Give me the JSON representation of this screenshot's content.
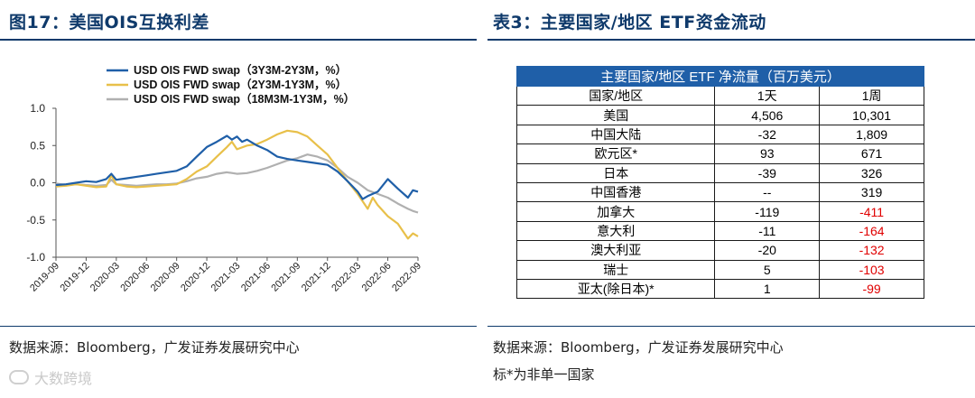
{
  "left_panel": {
    "title": "图17：美国OIS互换利差",
    "source": "数据来源：Bloomberg，广发证券发展研究中心"
  },
  "right_panel": {
    "title": "表3：主要国家/地区 ETF资金流动",
    "source": "数据来源：Bloomberg，广发证券发展研究中心",
    "note": "标*为非单一国家",
    "table": {
      "header": "主要国家/地区 ETF 净流量（百万美元）",
      "columns": [
        "国家/地区",
        "1天",
        "1周"
      ],
      "rows": [
        {
          "region": "美国",
          "d1": "4,506",
          "w1": "10,301",
          "w1_negative": false
        },
        {
          "region": "中国大陆",
          "d1": "-32",
          "w1": "1,809",
          "w1_negative": false
        },
        {
          "region": "欧元区*",
          "d1": "93",
          "w1": "671",
          "w1_negative": false
        },
        {
          "region": "日本",
          "d1": "-39",
          "w1": "326",
          "w1_negative": false
        },
        {
          "region": "中国香港",
          "d1": "--",
          "w1": "319",
          "w1_negative": false
        },
        {
          "region": "加拿大",
          "d1": "-119",
          "w1": "-411",
          "w1_negative": true
        },
        {
          "region": "意大利",
          "d1": "-11",
          "w1": "-164",
          "w1_negative": true
        },
        {
          "region": "澳大利亚",
          "d1": "-20",
          "w1": "-132",
          "w1_negative": true
        },
        {
          "region": "瑞士",
          "d1": "5",
          "w1": "-103",
          "w1_negative": true
        },
        {
          "region": "亚太(除日本)*",
          "d1": "1",
          "w1": "-99",
          "w1_negative": true
        }
      ]
    }
  },
  "watermark": "大数跨境",
  "chart_data": {
    "type": "line",
    "title": "",
    "xlabel": "",
    "ylabel": "",
    "ylim": [
      -1.0,
      1.0
    ],
    "yticks": [
      1.0,
      0.5,
      0.0,
      -0.5,
      -1.0
    ],
    "ytick_labels": [
      "1.0",
      "0.5",
      "0.0",
      "-0.5",
      "-1.0"
    ],
    "x_index_range": [
      0,
      36
    ],
    "xticks": [
      0,
      3,
      6,
      9,
      12,
      15,
      18,
      21,
      24,
      27,
      30,
      33,
      36
    ],
    "xtick_labels": [
      "2019-09",
      "2019-12",
      "2020-03",
      "2020-06",
      "2020-09",
      "2020-12",
      "2021-03",
      "2021-06",
      "2021-09",
      "2021-12",
      "2022-03",
      "2022-06",
      "2022-09"
    ],
    "legend_position": "top",
    "series": [
      {
        "name": "USD OIS FWD swap（3Y3M-2Y3M，%）",
        "color": "#1f5fa8",
        "points": [
          [
            0,
            -0.03
          ],
          [
            1,
            -0.02
          ],
          [
            2,
            0.0
          ],
          [
            3,
            0.02
          ],
          [
            4,
            0.01
          ],
          [
            5,
            0.05
          ],
          [
            5.5,
            0.12
          ],
          [
            6,
            0.04
          ],
          [
            7,
            0.06
          ],
          [
            8,
            0.08
          ],
          [
            9,
            0.1
          ],
          [
            10,
            0.12
          ],
          [
            11,
            0.14
          ],
          [
            12,
            0.16
          ],
          [
            13,
            0.22
          ],
          [
            14,
            0.35
          ],
          [
            15,
            0.48
          ],
          [
            16,
            0.55
          ],
          [
            17,
            0.63
          ],
          [
            17.5,
            0.58
          ],
          [
            18,
            0.62
          ],
          [
            18.5,
            0.55
          ],
          [
            19,
            0.58
          ],
          [
            20,
            0.5
          ],
          [
            21,
            0.44
          ],
          [
            22,
            0.35
          ],
          [
            23,
            0.32
          ],
          [
            24,
            0.3
          ],
          [
            25,
            0.28
          ],
          [
            26,
            0.26
          ],
          [
            27,
            0.24
          ],
          [
            28,
            0.15
          ],
          [
            29,
            0.02
          ],
          [
            30,
            -0.12
          ],
          [
            30.5,
            -0.22
          ],
          [
            31,
            -0.18
          ],
          [
            32,
            -0.12
          ],
          [
            33,
            0.05
          ],
          [
            34,
            -0.08
          ],
          [
            35,
            -0.2
          ],
          [
            35.5,
            -0.1
          ],
          [
            36,
            -0.12
          ]
        ]
      },
      {
        "name": "USD OIS FWD swap（2Y3M-1Y3M，%）",
        "color": "#e8c04a",
        "points": [
          [
            0,
            -0.05
          ],
          [
            1,
            -0.04
          ],
          [
            2,
            -0.02
          ],
          [
            3,
            -0.04
          ],
          [
            4,
            -0.06
          ],
          [
            5,
            -0.05
          ],
          [
            5.5,
            0.1
          ],
          [
            6,
            -0.02
          ],
          [
            7,
            -0.05
          ],
          [
            8,
            -0.06
          ],
          [
            9,
            -0.05
          ],
          [
            10,
            -0.04
          ],
          [
            11,
            -0.03
          ],
          [
            12,
            -0.02
          ],
          [
            13,
            0.05
          ],
          [
            14,
            0.15
          ],
          [
            15,
            0.22
          ],
          [
            16,
            0.35
          ],
          [
            17,
            0.48
          ],
          [
            17.5,
            0.55
          ],
          [
            18,
            0.45
          ],
          [
            19,
            0.5
          ],
          [
            20,
            0.52
          ],
          [
            21,
            0.58
          ],
          [
            22,
            0.65
          ],
          [
            23,
            0.7
          ],
          [
            24,
            0.68
          ],
          [
            25,
            0.62
          ],
          [
            26,
            0.5
          ],
          [
            27,
            0.38
          ],
          [
            28,
            0.2
          ],
          [
            29,
            0.02
          ],
          [
            30,
            -0.15
          ],
          [
            31,
            -0.35
          ],
          [
            31.5,
            -0.2
          ],
          [
            32,
            -0.3
          ],
          [
            33,
            -0.45
          ],
          [
            34,
            -0.55
          ],
          [
            35,
            -0.75
          ],
          [
            35.5,
            -0.68
          ],
          [
            36,
            -0.72
          ]
        ]
      },
      {
        "name": "USD OIS FWD swap（18M3M-1Y3M，%）",
        "color": "#b0b0b0",
        "points": [
          [
            0,
            -0.01
          ],
          [
            1,
            -0.03
          ],
          [
            2,
            -0.02
          ],
          [
            3,
            -0.03
          ],
          [
            4,
            -0.04
          ],
          [
            5,
            -0.03
          ],
          [
            5.5,
            0.04
          ],
          [
            6,
            -0.02
          ],
          [
            7,
            -0.03
          ],
          [
            8,
            -0.04
          ],
          [
            9,
            -0.03
          ],
          [
            10,
            -0.02
          ],
          [
            11,
            -0.02
          ],
          [
            12,
            -0.01
          ],
          [
            13,
            0.02
          ],
          [
            14,
            0.06
          ],
          [
            15,
            0.08
          ],
          [
            16,
            0.12
          ],
          [
            17,
            0.14
          ],
          [
            18,
            0.12
          ],
          [
            19,
            0.13
          ],
          [
            20,
            0.16
          ],
          [
            21,
            0.2
          ],
          [
            22,
            0.25
          ],
          [
            23,
            0.3
          ],
          [
            24,
            0.33
          ],
          [
            25,
            0.38
          ],
          [
            26,
            0.35
          ],
          [
            27,
            0.3
          ],
          [
            28,
            0.2
          ],
          [
            29,
            0.08
          ],
          [
            30,
            0.0
          ],
          [
            31,
            -0.1
          ],
          [
            32,
            -0.15
          ],
          [
            33,
            -0.2
          ],
          [
            34,
            -0.28
          ],
          [
            35,
            -0.35
          ],
          [
            35.5,
            -0.38
          ],
          [
            36,
            -0.4
          ]
        ]
      }
    ]
  }
}
